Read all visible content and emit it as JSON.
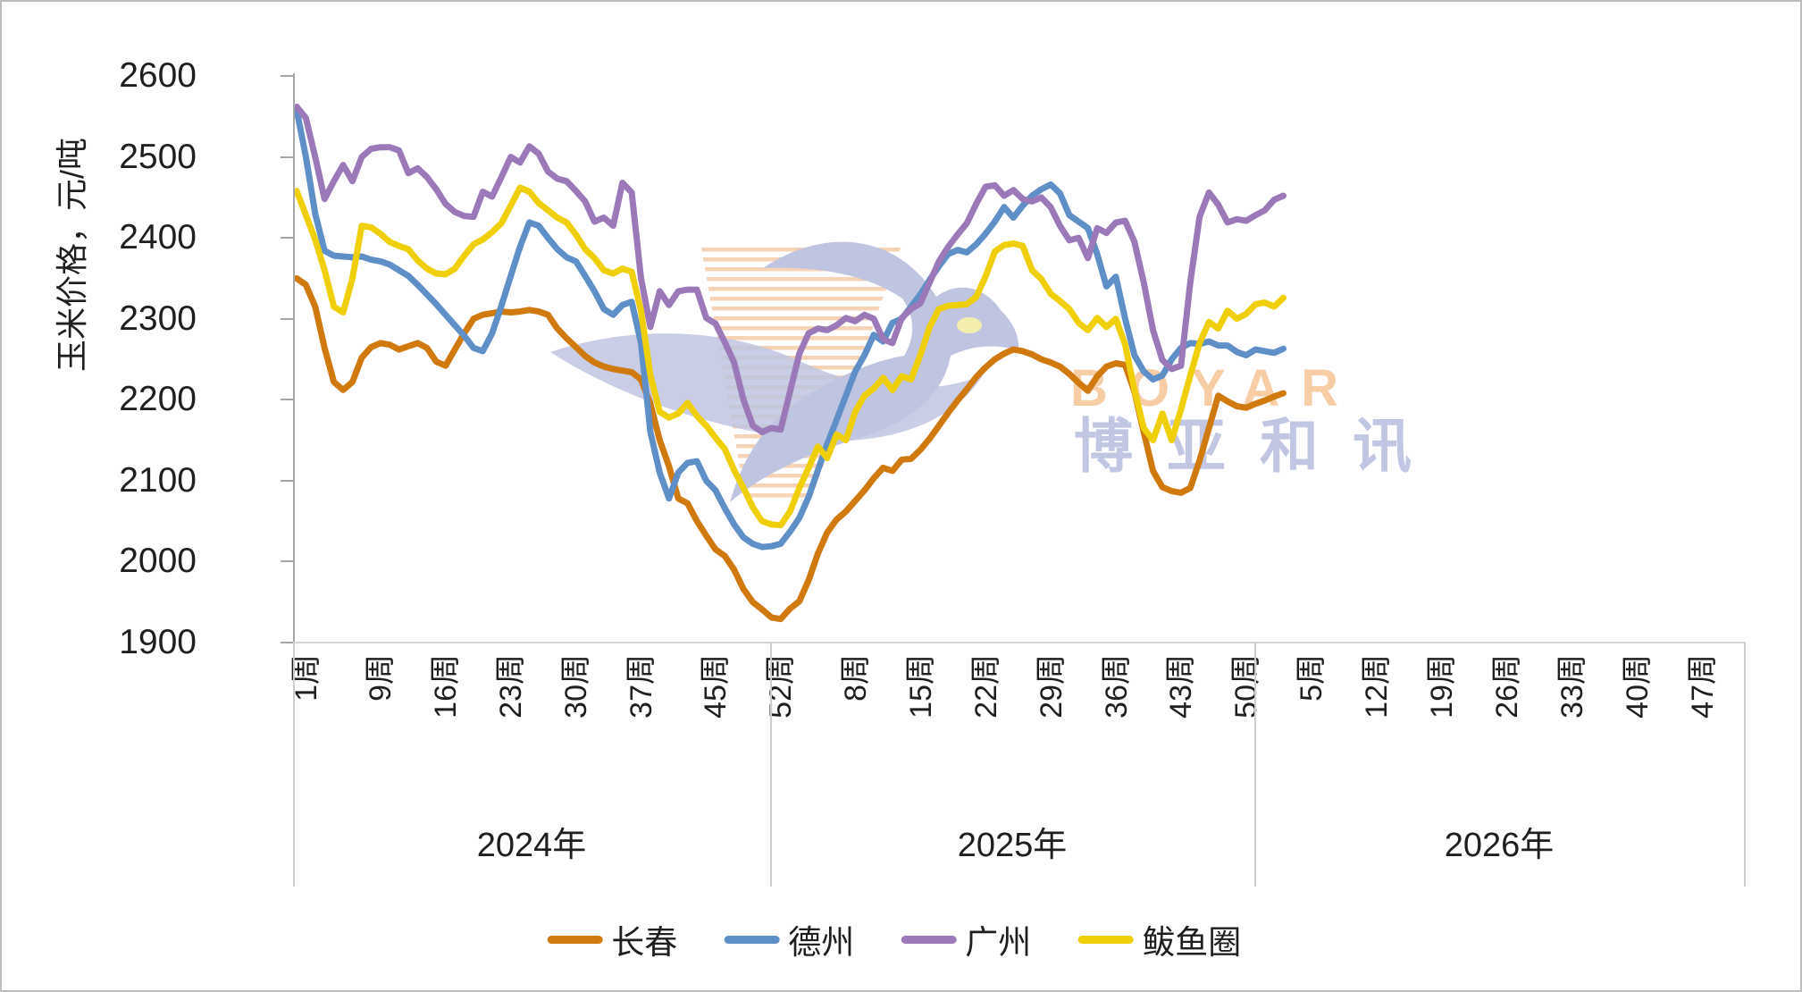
{
  "page": {
    "background": "#ffffff",
    "border_color": "#bdbdbd"
  },
  "chart_data": {
    "type": "line",
    "title": "",
    "grid": "none",
    "legend_position": "bottom",
    "y_axis": {
      "label": "玉米价格，元/吨",
      "min": 1900,
      "max": 2600,
      "tick_step": 100,
      "ticks": [
        2600,
        2500,
        2400,
        2300,
        2200,
        2100,
        2000,
        1900
      ]
    },
    "x_axis": {
      "week_suffix": "周",
      "year_groups": [
        {
          "label": "2024年",
          "weeks_total": 52,
          "tick_weeks": [
            1,
            9,
            16,
            23,
            30,
            37,
            45,
            52
          ]
        },
        {
          "label": "2025年",
          "weeks_total": 52,
          "tick_weeks": [
            8,
            15,
            22,
            29,
            36,
            43,
            50
          ]
        },
        {
          "label": "2026年",
          "weeks_total": 52,
          "tick_weeks": [
            5,
            12,
            19,
            26,
            33,
            40,
            47
          ]
        }
      ],
      "data_weeks": [
        52,
        52,
        3
      ]
    },
    "series": [
      {
        "id": "changchun",
        "name": "长春",
        "color": "#D0790F",
        "values": [
          2350,
          2342,
          2315,
          2264,
          2222,
          2212,
          2222,
          2252,
          2265,
          2270,
          2268,
          2262,
          2266,
          2270,
          2264,
          2247,
          2242,
          2262,
          2282,
          2300,
          2305,
          2307,
          2309,
          2308,
          2309,
          2311,
          2309,
          2305,
          2288,
          2276,
          2265,
          2254,
          2246,
          2241,
          2238,
          2236,
          2234,
          2225,
          2195,
          2150,
          2118,
          2078,
          2072,
          2050,
          2032,
          2015,
          2007,
          1990,
          1966,
          1950,
          1941,
          1931,
          1929,
          1942,
          1951,
          1977,
          2010,
          2036,
          2052,
          2062,
          2075,
          2088,
          2103,
          2116,
          2112,
          2126,
          2127,
          2138,
          2152,
          2168,
          2184,
          2199,
          2213,
          2228,
          2240,
          2250,
          2257,
          2262,
          2260,
          2256,
          2250,
          2246,
          2241,
          2232,
          2221,
          2211,
          2229,
          2241,
          2245,
          2243,
          2210,
          2160,
          2112,
          2092,
          2087,
          2085,
          2091,
          2125,
          2165,
          2205,
          2198,
          2192,
          2190,
          2195,
          2199,
          2204,
          2208
        ]
      },
      {
        "id": "dezhou",
        "name": "德州",
        "color": "#5E8FC7",
        "values": [
          2558,
          2500,
          2430,
          2384,
          2378,
          2377,
          2376,
          2377,
          2373,
          2371,
          2367,
          2360,
          2353,
          2342,
          2330,
          2318,
          2305,
          2292,
          2279,
          2264,
          2260,
          2282,
          2316,
          2353,
          2389,
          2419,
          2415,
          2400,
          2386,
          2376,
          2371,
          2353,
          2334,
          2312,
          2305,
          2317,
          2321,
          2270,
          2160,
          2110,
          2078,
          2110,
          2122,
          2124,
          2100,
          2088,
          2066,
          2046,
          2030,
          2022,
          2018,
          2019,
          2022,
          2037,
          2054,
          2080,
          2113,
          2145,
          2175,
          2205,
          2235,
          2255,
          2280,
          2272,
          2295,
          2300,
          2315,
          2330,
          2348,
          2365,
          2380,
          2385,
          2382,
          2392,
          2405,
          2420,
          2438,
          2425,
          2440,
          2452,
          2460,
          2466,
          2455,
          2428,
          2420,
          2412,
          2380,
          2340,
          2352,
          2300,
          2255,
          2235,
          2225,
          2230,
          2250,
          2264,
          2270,
          2269,
          2272,
          2267,
          2267,
          2259,
          2255,
          2262,
          2260,
          2258,
          2263
        ]
      },
      {
        "id": "guangzhou",
        "name": "广州",
        "color": "#9B79B8",
        "values": [
          2562,
          2548,
          2500,
          2448,
          2470,
          2490,
          2470,
          2500,
          2510,
          2512,
          2512,
          2508,
          2480,
          2486,
          2475,
          2460,
          2442,
          2432,
          2427,
          2426,
          2457,
          2451,
          2475,
          2500,
          2493,
          2513,
          2504,
          2482,
          2473,
          2470,
          2458,
          2445,
          2420,
          2425,
          2415,
          2468,
          2456,
          2350,
          2290,
          2334,
          2317,
          2334,
          2336,
          2336,
          2301,
          2294,
          2271,
          2246,
          2200,
          2168,
          2160,
          2165,
          2163,
          2210,
          2257,
          2282,
          2288,
          2286,
          2292,
          2301,
          2297,
          2305,
          2300,
          2275,
          2270,
          2301,
          2312,
          2319,
          2345,
          2371,
          2389,
          2404,
          2418,
          2442,
          2463,
          2465,
          2452,
          2459,
          2448,
          2445,
          2450,
          2438,
          2415,
          2397,
          2400,
          2375,
          2412,
          2406,
          2419,
          2421,
          2395,
          2345,
          2286,
          2249,
          2238,
          2242,
          2345,
          2426,
          2456,
          2441,
          2419,
          2423,
          2421,
          2428,
          2434,
          2447,
          2452
        ]
      },
      {
        "id": "bayuquan",
        "name": "鲅鱼圈",
        "color": "#EFCF07",
        "values": [
          2458,
          2428,
          2398,
          2360,
          2315,
          2308,
          2350,
          2415,
          2413,
          2405,
          2395,
          2390,
          2386,
          2372,
          2362,
          2356,
          2355,
          2362,
          2378,
          2392,
          2398,
          2407,
          2418,
          2440,
          2462,
          2457,
          2443,
          2434,
          2425,
          2419,
          2404,
          2386,
          2375,
          2360,
          2356,
          2362,
          2358,
          2310,
          2230,
          2185,
          2178,
          2183,
          2196,
          2180,
          2168,
          2153,
          2139,
          2113,
          2091,
          2067,
          2050,
          2046,
          2045,
          2062,
          2091,
          2116,
          2142,
          2128,
          2157,
          2150,
          2185,
          2205,
          2214,
          2227,
          2212,
          2229,
          2225,
          2255,
          2290,
          2312,
          2316,
          2317,
          2318,
          2327,
          2352,
          2383,
          2391,
          2393,
          2390,
          2360,
          2349,
          2331,
          2322,
          2312,
          2295,
          2286,
          2301,
          2290,
          2300,
          2268,
          2212,
          2165,
          2150,
          2183,
          2150,
          2188,
          2230,
          2270,
          2296,
          2288,
          2310,
          2300,
          2306,
          2318,
          2320,
          2315,
          2326
        ]
      }
    ]
  },
  "watermark": {
    "latin": "BOYAR",
    "cjk": "博亚和讯",
    "latin_color": "#F6C89C",
    "cjk_color": "#BBC1E0",
    "bird_color": "#B9BEDD",
    "stripe_color": "#F6CFAC",
    "eye_color": "#F2EDA6"
  }
}
